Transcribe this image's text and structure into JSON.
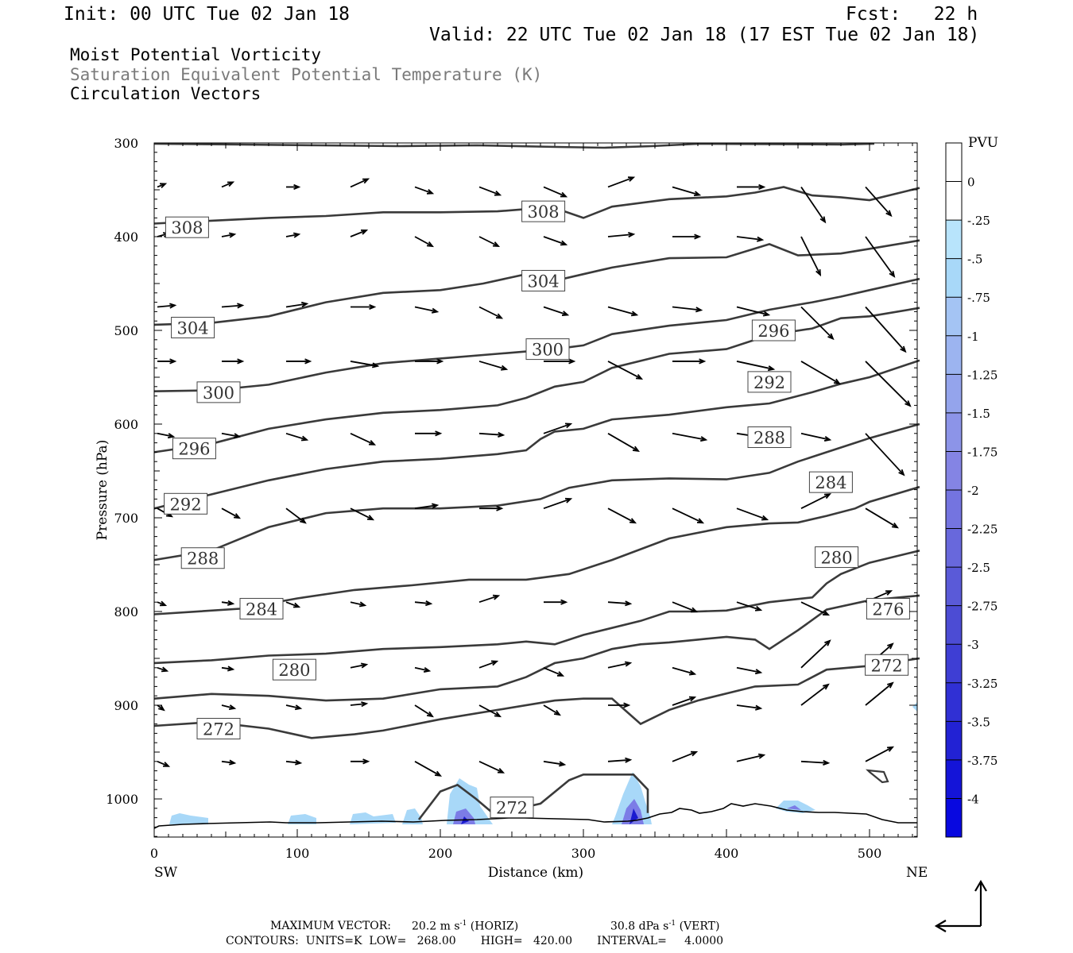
{
  "header": {
    "init": "Init: 00 UTC Tue 02 Jan 18",
    "fcst": "Fcst:   22 h",
    "valid": "Valid: 22 UTC Tue 02 Jan 18 (17 EST Tue 02 Jan 18)",
    "field1": "Moist Potential Vorticity",
    "field2": "Saturation Equivalent Potential Temperature (K)",
    "field3": "Circulation Vectors"
  },
  "footer": {
    "max_vector_label": "MAXIMUM VECTOR:",
    "horiz_value": "20.2 m s",
    "horiz_exp": "-1",
    "horiz_tag": " (HORIZ)",
    "vert_value": "30.8 dPa s",
    "vert_exp": "-1",
    "vert_tag": " (VERT)",
    "contours": "CONTOURS:  UNITS=K  LOW=   268.00       HIGH=   420.00       INTERVAL=     4.0000"
  },
  "colors": {
    "contour": "#3a3a3a",
    "vector": "#000000",
    "pv_light": "#a8d8f8",
    "pv_dark": "#1a1ad0"
  },
  "chart_data": {
    "type": "cross-section",
    "title": "",
    "xlabel": "Distance (km)",
    "ylabel": "Pressure (hPa)",
    "xlim": [
      0,
      535
    ],
    "ylim": [
      1040,
      300
    ],
    "xticks": [
      0,
      100,
      200,
      300,
      400,
      500
    ],
    "yticks": [
      300,
      400,
      500,
      600,
      700,
      800,
      900,
      1000
    ],
    "left_end_label": "SW",
    "right_end_label": "NE",
    "contour_interval": 4,
    "contours": [
      {
        "level": 308,
        "points": [
          [
            0,
            386
          ],
          [
            40,
            383
          ],
          [
            80,
            380
          ],
          [
            120,
            378
          ],
          [
            160,
            374
          ],
          [
            200,
            374
          ],
          [
            240,
            373
          ],
          [
            265,
            370
          ],
          [
            285,
            372
          ],
          [
            300,
            380
          ],
          [
            320,
            368
          ],
          [
            360,
            360
          ],
          [
            400,
            357
          ],
          [
            420,
            353
          ],
          [
            440,
            347
          ],
          [
            460,
            356
          ],
          [
            480,
            358
          ],
          [
            500,
            361
          ],
          [
            535,
            348
          ]
        ]
      },
      {
        "level": 304,
        "points": [
          [
            0,
            494
          ],
          [
            40,
            492
          ],
          [
            80,
            485
          ],
          [
            120,
            470
          ],
          [
            160,
            460
          ],
          [
            200,
            457
          ],
          [
            230,
            450
          ],
          [
            260,
            440
          ],
          [
            280,
            447
          ],
          [
            300,
            440
          ],
          [
            320,
            433
          ],
          [
            360,
            423
          ],
          [
            400,
            422
          ],
          [
            430,
            408
          ],
          [
            450,
            420
          ],
          [
            480,
            418
          ],
          [
            500,
            413
          ],
          [
            535,
            404
          ]
        ]
      },
      {
        "level": 300,
        "points": [
          [
            0,
            565
          ],
          [
            40,
            564
          ],
          [
            80,
            558
          ],
          [
            120,
            545
          ],
          [
            160,
            535
          ],
          [
            200,
            530
          ],
          [
            240,
            525
          ],
          [
            280,
            520
          ],
          [
            300,
            516
          ],
          [
            320,
            504
          ],
          [
            360,
            495
          ],
          [
            400,
            489
          ],
          [
            430,
            478
          ],
          [
            460,
            470
          ],
          [
            480,
            464
          ],
          [
            500,
            457
          ],
          [
            535,
            445
          ]
        ]
      },
      {
        "level": 296,
        "points": [
          [
            0,
            630
          ],
          [
            40,
            621
          ],
          [
            80,
            605
          ],
          [
            120,
            595
          ],
          [
            160,
            588
          ],
          [
            200,
            585
          ],
          [
            240,
            580
          ],
          [
            260,
            572
          ],
          [
            280,
            560
          ],
          [
            300,
            555
          ],
          [
            320,
            540
          ],
          [
            360,
            525
          ],
          [
            400,
            520
          ],
          [
            430,
            505
          ],
          [
            460,
            498
          ],
          [
            480,
            487
          ],
          [
            500,
            485
          ],
          [
            535,
            476
          ]
        ]
      },
      {
        "level": 292,
        "points": [
          [
            0,
            690
          ],
          [
            40,
            675
          ],
          [
            80,
            660
          ],
          [
            120,
            648
          ],
          [
            160,
            640
          ],
          [
            200,
            637
          ],
          [
            240,
            632
          ],
          [
            260,
            628
          ],
          [
            270,
            616
          ],
          [
            280,
            608
          ],
          [
            300,
            605
          ],
          [
            320,
            595
          ],
          [
            360,
            590
          ],
          [
            400,
            582
          ],
          [
            430,
            578
          ],
          [
            460,
            566
          ],
          [
            480,
            557
          ],
          [
            500,
            550
          ],
          [
            535,
            532
          ]
        ]
      },
      {
        "level": 288,
        "points": [
          [
            0,
            745
          ],
          [
            40,
            735
          ],
          [
            80,
            710
          ],
          [
            120,
            695
          ],
          [
            160,
            690
          ],
          [
            200,
            690
          ],
          [
            240,
            687
          ],
          [
            270,
            680
          ],
          [
            290,
            668
          ],
          [
            320,
            660
          ],
          [
            360,
            658
          ],
          [
            400,
            659
          ],
          [
            430,
            652
          ],
          [
            450,
            640
          ],
          [
            470,
            630
          ],
          [
            490,
            620
          ],
          [
            500,
            615
          ],
          [
            535,
            600
          ]
        ]
      },
      {
        "level": 284,
        "points": [
          [
            0,
            803
          ],
          [
            60,
            797
          ],
          [
            100,
            786
          ],
          [
            140,
            777
          ],
          [
            180,
            772
          ],
          [
            220,
            766
          ],
          [
            260,
            766
          ],
          [
            290,
            760
          ],
          [
            320,
            745
          ],
          [
            360,
            722
          ],
          [
            400,
            710
          ],
          [
            430,
            706
          ],
          [
            450,
            705
          ],
          [
            470,
            698
          ],
          [
            490,
            690
          ],
          [
            500,
            683
          ],
          [
            535,
            667
          ]
        ]
      },
      {
        "level": 280,
        "points": [
          [
            0,
            855
          ],
          [
            40,
            852
          ],
          [
            80,
            847
          ],
          [
            120,
            845
          ],
          [
            160,
            840
          ],
          [
            200,
            838
          ],
          [
            240,
            835
          ],
          [
            260,
            832
          ],
          [
            280,
            835
          ],
          [
            300,
            825
          ],
          [
            340,
            810
          ],
          [
            360,
            800
          ],
          [
            380,
            800
          ],
          [
            400,
            799
          ],
          [
            430,
            790
          ],
          [
            460,
            785
          ],
          [
            470,
            770
          ],
          [
            480,
            760
          ],
          [
            500,
            748
          ],
          [
            535,
            735
          ]
        ]
      },
      {
        "level": 276,
        "points": [
          [
            0,
            893
          ],
          [
            40,
            888
          ],
          [
            80,
            890
          ],
          [
            120,
            895
          ],
          [
            160,
            893
          ],
          [
            200,
            883
          ],
          [
            240,
            880
          ],
          [
            260,
            870
          ],
          [
            280,
            855
          ],
          [
            300,
            850
          ],
          [
            320,
            840
          ],
          [
            340,
            835
          ],
          [
            360,
            833
          ],
          [
            380,
            830
          ],
          [
            400,
            827
          ],
          [
            420,
            830
          ],
          [
            430,
            840
          ],
          [
            450,
            820
          ],
          [
            470,
            798
          ],
          [
            500,
            788
          ],
          [
            535,
            783
          ]
        ]
      },
      {
        "level": 272,
        "points": [
          [
            0,
            922
          ],
          [
            40,
            918
          ],
          [
            80,
            925
          ],
          [
            110,
            935
          ],
          [
            140,
            931
          ],
          [
            160,
            927
          ],
          [
            200,
            915
          ],
          [
            240,
            905
          ],
          [
            280,
            895
          ],
          [
            300,
            893
          ],
          [
            320,
            893
          ],
          [
            340,
            920
          ],
          [
            360,
            905
          ],
          [
            380,
            895
          ],
          [
            420,
            880
          ],
          [
            450,
            878
          ],
          [
            470,
            862
          ],
          [
            500,
            858
          ],
          [
            535,
            850
          ]
        ]
      },
      {
        "level": 272,
        "points": [
          [
            185,
            1022
          ],
          [
            200,
            992
          ],
          [
            212,
            985
          ],
          [
            225,
            1000
          ],
          [
            235,
            1013
          ],
          [
            250,
            1012
          ],
          [
            270,
            1005
          ],
          [
            290,
            980
          ],
          [
            300,
            974
          ],
          [
            320,
            974
          ],
          [
            335,
            974
          ],
          [
            345,
            990
          ],
          [
            345,
            1015
          ]
        ]
      }
    ],
    "contour_labels": [
      {
        "text": "308",
        "x": 23,
        "p": 390
      },
      {
        "text": "308",
        "x": 272,
        "p": 373
      },
      {
        "text": "304",
        "x": 27,
        "p": 497
      },
      {
        "text": "304",
        "x": 272,
        "p": 447
      },
      {
        "text": "300",
        "x": 45,
        "p": 566
      },
      {
        "text": "300",
        "x": 275,
        "p": 520
      },
      {
        "text": "296",
        "x": 28,
        "p": 626
      },
      {
        "text": "296",
        "x": 433,
        "p": 500
      },
      {
        "text": "292",
        "x": 22,
        "p": 685
      },
      {
        "text": "292",
        "x": 430,
        "p": 555
      },
      {
        "text": "288",
        "x": 34,
        "p": 743
      },
      {
        "text": "288",
        "x": 430,
        "p": 614
      },
      {
        "text": "284",
        "x": 75,
        "p": 797
      },
      {
        "text": "284",
        "x": 473,
        "p": 662
      },
      {
        "text": "280",
        "x": 98,
        "p": 862
      },
      {
        "text": "280",
        "x": 477,
        "p": 742
      },
      {
        "text": "276",
        "x": 513,
        "p": 797
      },
      {
        "text": "272",
        "x": 45,
        "p": 925
      },
      {
        "text": "272",
        "x": 512,
        "p": 857
      },
      {
        "text": "272",
        "x": 250,
        "p": 1009
      }
    ],
    "pv_legend": {
      "unit": "PVU",
      "labels": [
        "0",
        "-.25",
        "-.5",
        "-.75",
        "-1",
        "-1.25",
        "-1.5",
        "-1.75",
        "-2",
        "-2.25",
        "-2.5",
        "-2.75",
        "-3",
        "-3.25",
        "-3.5",
        "-3.75",
        "-4"
      ],
      "colors": [
        "#ffffff",
        "#ffffff",
        "#b8e4fc",
        "#a8d8f8",
        "#a4c4f4",
        "#9cb4f0",
        "#94a4ec",
        "#8c94e8",
        "#8484e4",
        "#7474e0",
        "#6868dc",
        "#5a5ad8",
        "#4c4cd4",
        "#3e3ed4",
        "#3030d4",
        "#2222d4",
        "#1414d8",
        "#0808e0"
      ]
    }
  }
}
